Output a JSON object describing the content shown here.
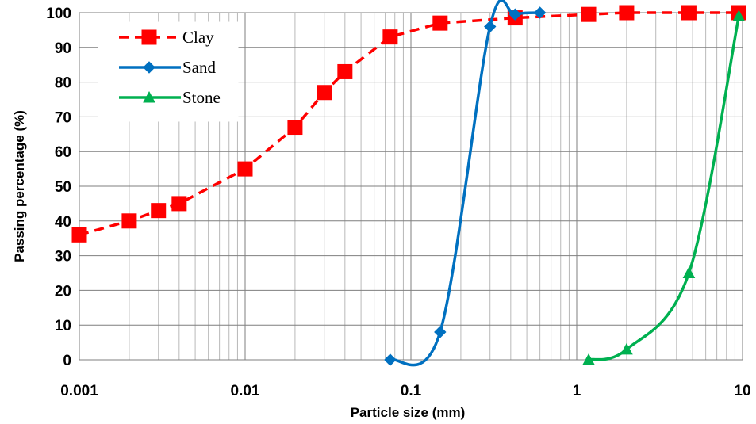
{
  "chart_data": {
    "type": "line",
    "title": "",
    "xlabel": "Particle size (mm)",
    "ylabel": "Passing percentage (%)",
    "xscale": "log",
    "xlim": [
      0.001,
      10
    ],
    "ylim": [
      0,
      100
    ],
    "x_ticks": [
      {
        "value": 0.001,
        "label": "0.001"
      },
      {
        "value": 0.01,
        "label": "0.01"
      },
      {
        "value": 0.1,
        "label": "0.1"
      },
      {
        "value": 1,
        "label": "1"
      },
      {
        "value": 10,
        "label": "10"
      }
    ],
    "y_ticks": [
      {
        "value": 0,
        "label": "0"
      },
      {
        "value": 10,
        "label": "10"
      },
      {
        "value": 20,
        "label": "20"
      },
      {
        "value": 30,
        "label": "30"
      },
      {
        "value": 40,
        "label": "40"
      },
      {
        "value": 50,
        "label": "50"
      },
      {
        "value": 60,
        "label": "60"
      },
      {
        "value": 70,
        "label": "70"
      },
      {
        "value": 80,
        "label": "80"
      },
      {
        "value": 90,
        "label": "90"
      },
      {
        "value": 100,
        "label": "100"
      }
    ],
    "grid": true,
    "legend": {
      "position": "top-left"
    },
    "series": [
      {
        "name": "Clay",
        "color": "#ff0000",
        "marker": "square",
        "line": "dashed",
        "smooth": false,
        "x": [
          0.001,
          0.002,
          0.003,
          0.004,
          0.01,
          0.02,
          0.03,
          0.04,
          0.075,
          0.15,
          0.425,
          1.18,
          2,
          4.75,
          9.5
        ],
        "y": [
          36,
          40,
          43,
          45,
          55,
          67,
          77,
          83,
          93,
          97,
          98.5,
          99.5,
          100,
          100,
          100
        ]
      },
      {
        "name": "Sand",
        "color": "#0070c0",
        "marker": "diamond",
        "line": "solid",
        "smooth": true,
        "x": [
          0.075,
          0.15,
          0.3,
          0.425,
          0.6
        ],
        "y": [
          0,
          8,
          96,
          99.5,
          100
        ]
      },
      {
        "name": "Stone",
        "color": "#00b050",
        "marker": "triangle",
        "line": "solid",
        "smooth": true,
        "x": [
          1.18,
          2,
          4.75,
          9.5
        ],
        "y": [
          0,
          3,
          25,
          99
        ]
      }
    ]
  }
}
